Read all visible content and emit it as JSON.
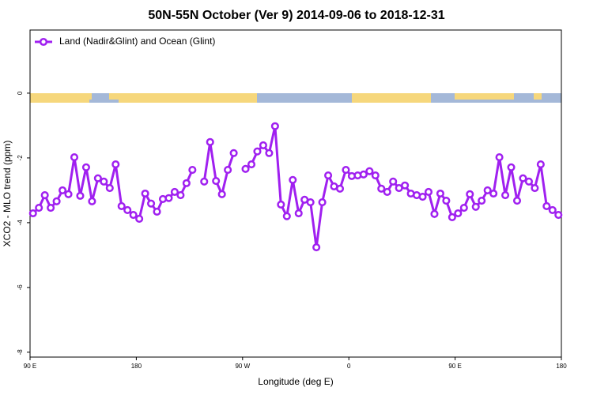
{
  "chart_data": {
    "type": "line",
    "title": "50N-55N October (Ver 9)   2014-09-06 to 2018-12-31",
    "x_label": "Longitude (deg E)",
    "y_label": "XCO2 - MLO trend (ppm)",
    "legend_position": "upper left",
    "x": [
      92.5,
      97.5,
      102.5,
      107.5,
      112.5,
      117.5,
      122.5,
      127.5,
      132.5,
      137.5,
      142.5,
      147.5,
      152.5,
      157.5,
      162.5,
      167.5,
      172.5,
      177.5,
      182.5,
      187.5,
      192.5,
      197.5,
      202.5,
      207.5,
      212.5,
      217.5,
      222.5,
      227.5,
      232.5,
      237.5,
      242.5,
      247.5,
      252.5,
      257.5,
      262.5,
      267.5,
      272.5,
      277.5,
      282.5,
      287.5,
      292.5,
      297.5,
      302.5,
      307.5,
      312.5,
      317.5,
      322.5,
      327.5,
      332.5,
      337.5,
      342.5,
      347.5,
      352.5,
      357.5,
      362.5,
      367.5,
      372.5,
      377.5,
      382.5,
      387.5,
      392.5,
      397.5,
      402.5,
      407.5,
      412.5,
      417.5,
      422.5,
      427.5,
      432.5,
      437.5,
      442.5,
      447.5,
      452.5,
      457.5,
      462.5,
      467.5,
      472.5,
      477.5,
      482.5,
      487.5,
      492.5,
      497.5,
      502.5,
      507.5,
      512.5,
      517.5,
      522.5,
      527.5,
      532.5,
      537.5
    ],
    "series": [
      {
        "name": "Land (Nadir&Glint) and Ocean (Glint)",
        "color": "#a020f0",
        "values": [
          -3.71,
          -3.54,
          -3.15,
          -3.54,
          -3.34,
          -3.0,
          -3.12,
          -1.98,
          -3.17,
          -2.29,
          -3.34,
          -2.63,
          -2.73,
          -2.93,
          -2.2,
          -3.49,
          -3.61,
          -3.76,
          -3.88,
          -3.1,
          -3.41,
          -3.66,
          -3.27,
          -3.24,
          -3.05,
          -3.15,
          -2.78,
          -2.37,
          null,
          -2.73,
          -1.51,
          -2.71,
          -3.12,
          -2.37,
          -1.85,
          null,
          -2.34,
          -2.2,
          -1.8,
          -1.61,
          -1.85,
          -1.02,
          -3.44,
          -3.8,
          -2.68,
          -3.71,
          -3.29,
          -3.37,
          -4.76,
          -3.37,
          -2.54,
          -2.88,
          -2.95,
          -2.37,
          -2.56,
          -2.54,
          -2.51,
          -2.41,
          -2.54,
          -2.95,
          -3.05,
          -2.73,
          -2.93,
          -2.85,
          -3.1,
          -3.15,
          -3.2,
          -3.05,
          -3.73,
          -3.1,
          -3.32,
          -3.83,
          -3.71,
          -3.54,
          -3.12,
          -3.51,
          -3.32,
          -3.0,
          -3.1,
          -1.98,
          -3.15,
          -2.29,
          -3.32,
          -2.63,
          -2.73,
          -2.93,
          -2.2,
          -3.49,
          -3.61,
          -3.76
        ]
      }
    ],
    "xlim": [
      90,
      540
    ],
    "xticks": [
      {
        "value": 90,
        "label": "90 E"
      },
      180,
      {
        "value": 270,
        "label": "90 W"
      },
      {
        "value": 360,
        "label": "0"
      },
      {
        "value": 450,
        "label": "90 E"
      },
      {
        "value": 540,
        "label": "180"
      }
    ],
    "ylim": [
      -8.15,
      1.95
    ],
    "yticks": [
      0,
      -2,
      -4,
      -6,
      -8
    ]
  }
}
